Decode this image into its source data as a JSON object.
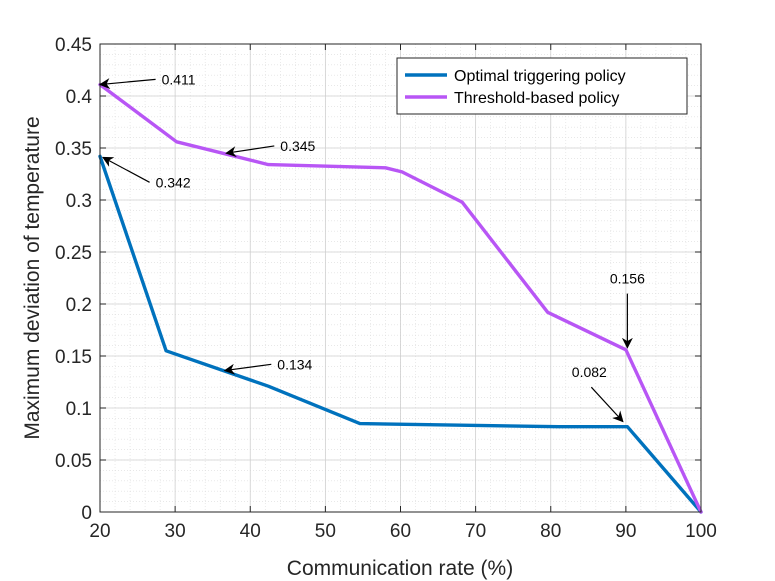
{
  "chart_data": {
    "type": "line",
    "title": "",
    "xlabel": "Communication rate (%)",
    "ylabel": "Maximum deviation of temperature",
    "xlim": [
      20,
      100
    ],
    "ylim": [
      0,
      0.45
    ],
    "xticks": [
      20,
      30,
      40,
      50,
      60,
      70,
      80,
      90,
      100
    ],
    "yticks": [
      0,
      0.05,
      0.1,
      0.15,
      0.2,
      0.25,
      0.3,
      0.35,
      0.4,
      0.45
    ],
    "xtick_labels": [
      "20",
      "30",
      "40",
      "50",
      "60",
      "70",
      "80",
      "90",
      "100"
    ],
    "ytick_labels": [
      "0",
      "0.05",
      "0.1",
      "0.15",
      "0.2",
      "0.25",
      "0.3",
      "0.35",
      "0.4",
      "0.45"
    ],
    "grid": true,
    "minor_grid": true,
    "legend_position": "top-right",
    "series": [
      {
        "name": "Optimal triggering policy",
        "color": "#0072BD",
        "x": [
          20,
          28.8,
          42.4,
          54.6,
          81,
          90.2,
          100
        ],
        "y": [
          0.342,
          0.155,
          0.121,
          0.085,
          0.082,
          0.082,
          0
        ]
      },
      {
        "name": "Threshold-based policy",
        "color": "#B856F5",
        "x": [
          20,
          30.2,
          42.4,
          58,
          60.2,
          68.2,
          79.6,
          90,
          100
        ],
        "y": [
          0.411,
          0.356,
          0.334,
          0.331,
          0.327,
          0.298,
          0.192,
          0.156,
          0
        ]
      }
    ],
    "annotations": [
      {
        "text": "0.411",
        "point_x": 20,
        "point_y": 0.411,
        "tail_x": 27.4,
        "tail_y": 0.416
      },
      {
        "text": "0.345",
        "point_x": 36.8,
        "point_y": 0.345,
        "tail_x": 43.2,
        "tail_y": 0.352
      },
      {
        "text": "0.342",
        "point_x": 20.4,
        "point_y": 0.341,
        "tail_x": 26.6,
        "tail_y": 0.317
      },
      {
        "text": "0.134",
        "point_x": 36.6,
        "point_y": 0.136,
        "tail_x": 42.8,
        "tail_y": 0.142
      },
      {
        "text": "0.156",
        "point_x": 90.2,
        "point_y": 0.158,
        "tail_x": 90.2,
        "tail_y": 0.21
      },
      {
        "text": "0.082",
        "point_x": 89.6,
        "point_y": 0.087,
        "tail_x": 85.4,
        "tail_y": 0.12
      }
    ]
  }
}
